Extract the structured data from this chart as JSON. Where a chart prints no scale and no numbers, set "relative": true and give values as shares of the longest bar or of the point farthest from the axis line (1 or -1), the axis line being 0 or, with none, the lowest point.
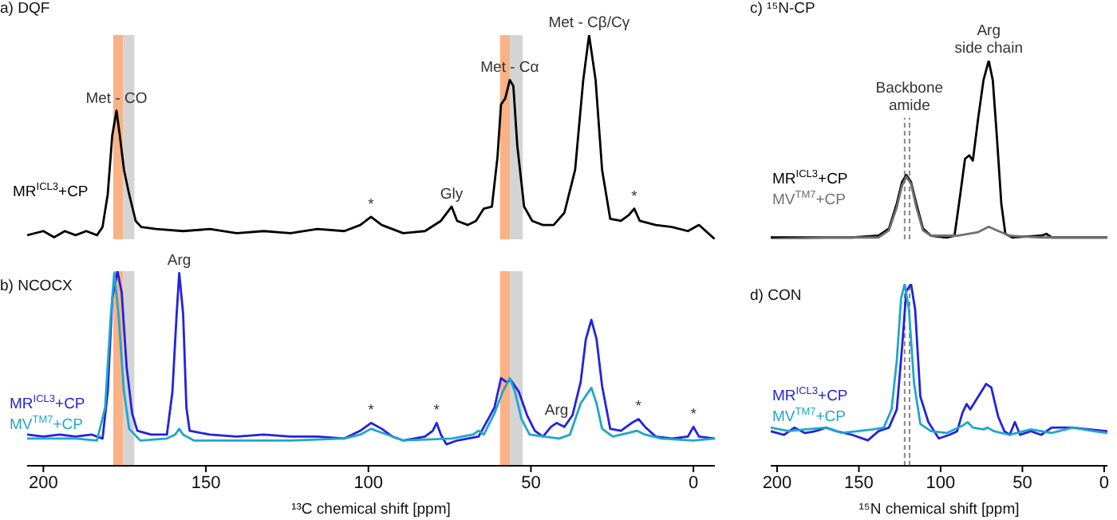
{
  "chart_data": [
    {
      "type": "line",
      "title": "a) DQF",
      "relative": true,
      "xticks": [
        200,
        150,
        100,
        50,
        0
      ],
      "tick_labels": false,
      "series": [
        {
          "name": "MR$^{ICL3}$+CP",
          "color": "#000000",
          "x": [
            205.0,
            200.0,
            196.7,
            193.4,
            190.1,
            186.8,
            183.5,
            181.8,
            180.2,
            178.8,
            177.5,
            176.5,
            175.2,
            173.6,
            171.6,
            169.9,
            165.3,
            157.0,
            148.8,
            140.5,
            132.2,
            124.0,
            115.7,
            107.4,
            102.5,
            99.2,
            95.9,
            89.3,
            82.6,
            77.7,
            74.4,
            72.7,
            69.4,
            66.9,
            64.5,
            62.0,
            60.3,
            59.2,
            57.9,
            56.5,
            55.4,
            54.2,
            52.1,
            49.6,
            46.3,
            43.0,
            39.7,
            36.4,
            33.9,
            32.1,
            30.1,
            28.1,
            25.6,
            22.3,
            19.8,
            18.2,
            16.5,
            11.6,
            6.6,
            1.7,
            -1.7,
            -6.6
          ],
          "values": [
            0.02,
            0.04,
            0.01,
            0.04,
            0.02,
            0.04,
            0.02,
            0.06,
            0.22,
            0.51,
            0.63,
            0.51,
            0.34,
            0.22,
            0.09,
            0.06,
            0.05,
            0.04,
            0.05,
            0.03,
            0.04,
            0.03,
            0.05,
            0.04,
            0.07,
            0.11,
            0.07,
            0.03,
            0.04,
            0.09,
            0.16,
            0.09,
            0.07,
            0.09,
            0.15,
            0.16,
            0.4,
            0.66,
            0.69,
            0.78,
            0.75,
            0.46,
            0.16,
            0.09,
            0.07,
            0.07,
            0.13,
            0.34,
            0.78,
            1.0,
            0.78,
            0.34,
            0.1,
            0.09,
            0.12,
            0.15,
            0.09,
            0.07,
            0.06,
            0.04,
            0.07,
            0.0
          ]
        }
      ],
      "bands": [
        {
          "axis": "x",
          "from": 175.5,
          "to": 178.5,
          "color": "#f8aa78"
        },
        {
          "axis": "x",
          "from": 172,
          "to": 175.5,
          "color": "#cfcfcf"
        },
        {
          "axis": "x",
          "from": 56.5,
          "to": 59.5,
          "color": "#f8aa78"
        },
        {
          "axis": "x",
          "from": 52.5,
          "to": 56.5,
          "color": "#cfcfcf"
        }
      ],
      "annotations": [
        {
          "text": "Met - CO",
          "x": 177.5,
          "y": 0.63
        },
        {
          "text": "Met - Cα",
          "x": 56.5,
          "y": 0.78
        },
        {
          "text": "Met - Cβ/Cγ",
          "x": 32.1,
          "y": 1.0
        },
        {
          "text": "Gly",
          "x": 74.4,
          "y": 0.16
        },
        {
          "text": "*",
          "x": 99.2,
          "y": 0.11
        },
        {
          "text": "*",
          "x": 18.2,
          "y": 0.15
        }
      ]
    },
    {
      "type": "line",
      "title": "b) NCOCX",
      "xlabel": "¹³C chemical shift [ppm]",
      "relative": true,
      "xlim": [
        205.0,
        -6.6
      ],
      "xticks": [
        200,
        150,
        100,
        50,
        0
      ],
      "series": [
        {
          "name": "MR$^{ICL3}$+CP",
          "color": "#2222e0",
          "x": [
            205.0,
            200.0,
            195.0,
            190.1,
            185.1,
            181.8,
            180.2,
            178.8,
            177.2,
            175.9,
            174.4,
            172.7,
            171.1,
            166.9,
            162.0,
            160.3,
            159.0,
            158.2,
            157.0,
            156.0,
            155.0,
            148.8,
            140.5,
            132.2,
            124.0,
            115.7,
            107.4,
            102.5,
            99.2,
            95.9,
            92.6,
            89.3,
            82.6,
            80.2,
            79.0,
            77.7,
            76.0,
            72.7,
            66.1,
            61.2,
            59.2,
            57.5,
            56.2,
            53.7,
            51.2,
            48.8,
            46.3,
            43.8,
            42.1,
            39.7,
            37.2,
            34.7,
            33.1,
            31.4,
            29.8,
            28.1,
            25.6,
            22.3,
            19.0,
            16.9,
            14.9,
            11.6,
            6.6,
            1.7,
            0.0,
            -1.7,
            -6.6
          ],
          "values": [
            0.16,
            0.15,
            0.16,
            0.15,
            0.16,
            0.14,
            0.38,
            0.86,
            1.0,
            0.89,
            0.51,
            0.27,
            0.18,
            0.16,
            0.16,
            0.38,
            0.78,
            0.99,
            0.78,
            0.3,
            0.18,
            0.16,
            0.15,
            0.16,
            0.15,
            0.15,
            0.14,
            0.18,
            0.22,
            0.19,
            0.15,
            0.13,
            0.15,
            0.18,
            0.22,
            0.16,
            0.11,
            0.13,
            0.15,
            0.3,
            0.45,
            0.43,
            0.44,
            0.38,
            0.26,
            0.18,
            0.15,
            0.2,
            0.22,
            0.2,
            0.26,
            0.43,
            0.65,
            0.75,
            0.65,
            0.41,
            0.19,
            0.18,
            0.22,
            0.24,
            0.2,
            0.15,
            0.14,
            0.15,
            0.2,
            0.15,
            0.14
          ]
        },
        {
          "name": "MV$^{TM7}$+CP",
          "color": "#1fa6cc",
          "x": [
            205.0,
            198.3,
            190.1,
            183.5,
            181.0,
            179.3,
            178.2,
            176.9,
            175.2,
            173.6,
            170.2,
            162.0,
            159.5,
            158.2,
            157.0,
            153.7,
            140.5,
            124.0,
            107.4,
            102.5,
            99.2,
            95.9,
            89.3,
            74.4,
            67.8,
            66.1,
            64.5,
            61.2,
            58.7,
            56.5,
            54.9,
            52.9,
            50.4,
            41.3,
            38.0,
            34.7,
            33.1,
            31.4,
            29.8,
            28.1,
            24.8,
            19.8,
            17.4,
            14.9,
            9.9,
            0.0,
            -6.6
          ],
          "values": [
            0.14,
            0.14,
            0.14,
            0.13,
            0.3,
            0.76,
            0.99,
            0.78,
            0.38,
            0.19,
            0.13,
            0.14,
            0.16,
            0.19,
            0.16,
            0.13,
            0.13,
            0.13,
            0.14,
            0.16,
            0.19,
            0.17,
            0.13,
            0.14,
            0.16,
            0.18,
            0.16,
            0.27,
            0.38,
            0.45,
            0.38,
            0.24,
            0.16,
            0.14,
            0.16,
            0.32,
            0.36,
            0.4,
            0.32,
            0.19,
            0.15,
            0.17,
            0.18,
            0.16,
            0.14,
            0.13,
            0.14
          ]
        }
      ],
      "bands": [
        {
          "axis": "x",
          "from": 175.5,
          "to": 178.5,
          "color": "#f8aa78"
        },
        {
          "axis": "x",
          "from": 172,
          "to": 175.5,
          "color": "#cfcfcf"
        },
        {
          "axis": "x",
          "from": 56.5,
          "to": 59.5,
          "color": "#f8aa78"
        },
        {
          "axis": "x",
          "from": 52.5,
          "to": 56.5,
          "color": "#cfcfcf"
        }
      ],
      "annotations": [
        {
          "text": "Arg",
          "x": 158.2,
          "y": 0.99
        },
        {
          "text": "Arg",
          "x": 42.1,
          "y": 0.22
        },
        {
          "text": "*",
          "x": 99.2,
          "y": 0.22
        },
        {
          "text": "*",
          "x": 79.0,
          "y": 0.22
        },
        {
          "text": "*",
          "x": 16.9,
          "y": 0.24
        },
        {
          "text": "*",
          "x": 0.0,
          "y": 0.2
        }
      ]
    },
    {
      "type": "line",
      "title": "c) ¹⁵N-CP",
      "relative": true,
      "xticks": [
        200,
        150,
        100,
        50,
        0
      ],
      "tick_labels": false,
      "series": [
        {
          "name": "MR$^{ICL3}$+CP",
          "color": "#000000",
          "x": [
            203.9,
            186.2,
            170.1,
            154.1,
            138.0,
            131.6,
            126.8,
            123.6,
            121.0,
            118.1,
            114.9,
            110.8,
            105.9,
            96.3,
            91.5,
            88.3,
            85.1,
            82.5,
            80.3,
            77.0,
            73.8,
            70.6,
            68.1,
            65.5,
            62.9,
            60.4,
            56.2,
            38.5,
            35.3,
            32.1,
            12.8,
            -2
          ],
          "values": [
            0.01,
            0.01,
            0.01,
            0.01,
            0.02,
            0.06,
            0.2,
            0.32,
            0.36,
            0.32,
            0.2,
            0.06,
            0.02,
            0.01,
            0.02,
            0.23,
            0.45,
            0.47,
            0.44,
            0.68,
            0.89,
            1.0,
            0.89,
            0.56,
            0.2,
            0.03,
            0.01,
            0.02,
            0.03,
            0.01,
            0.01,
            0.01
          ]
        },
        {
          "name": "MV$^{TM7}$+CP",
          "color": "#707070",
          "x": [
            203.9,
            170.1,
            138.0,
            131.6,
            126.8,
            123.6,
            121.0,
            118.1,
            114.9,
            110.8,
            105.9,
            89.9,
            77.0,
            70.6,
            65.8,
            57.8,
            38.5,
            -2
          ],
          "values": [
            0.0,
            0.01,
            0.01,
            0.05,
            0.18,
            0.3,
            0.35,
            0.31,
            0.18,
            0.05,
            0.02,
            0.02,
            0.04,
            0.07,
            0.05,
            0.02,
            0.01,
            0.01
          ]
        }
      ],
      "ref_lines": [
        {
          "axis": "x",
          "value": 122,
          "color": "#888888",
          "line_style": "dashed",
          "label": "Backbone\namide"
        },
        {
          "axis": "x",
          "value": 119,
          "color": "#888888",
          "line_style": "dashed"
        }
      ],
      "annotations": [
        {
          "text": "Arg\nside chain",
          "x": 70.6,
          "y": 1.0
        }
      ]
    },
    {
      "type": "line",
      "title": "d) CON",
      "xlabel": "¹⁵N chemical shift [ppm]",
      "relative": true,
      "xlim": [
        203.9,
        -2
      ],
      "xticks": [
        200,
        150,
        100,
        50,
        0
      ],
      "series": [
        {
          "name": "MR$^{ICL3}$+CP",
          "color": "#2222e0",
          "x": [
            203.9,
            195.8,
            189.4,
            183.0,
            176.6,
            170.1,
            163.7,
            154.1,
            144.5,
            138.0,
            131.6,
            126.8,
            123.6,
            121.0,
            118.1,
            115.6,
            112.4,
            107.5,
            101.1,
            94.7,
            89.9,
            86.7,
            84.1,
            81.9,
            77.0,
            72.2,
            69.0,
            64.8,
            61.0,
            57.8,
            54.6,
            51.4,
            44.9,
            38.5,
            32.1,
            19.3,
            9.6,
            -2
          ],
          "values": [
            0.19,
            0.17,
            0.21,
            0.18,
            0.19,
            0.21,
            0.19,
            0.17,
            0.14,
            0.19,
            0.21,
            0.31,
            0.65,
            0.96,
            1.0,
            0.86,
            0.38,
            0.24,
            0.15,
            0.17,
            0.19,
            0.29,
            0.34,
            0.31,
            0.38,
            0.45,
            0.43,
            0.27,
            0.19,
            0.17,
            0.24,
            0.17,
            0.19,
            0.17,
            0.21,
            0.21,
            0.2,
            0.19
          ]
        },
        {
          "name": "MV$^{TM7}$+CP",
          "color": "#1fa6cc",
          "x": [
            203.9,
            192.6,
            183.0,
            170.1,
            160.5,
            150.9,
            141.3,
            134.8,
            130.0,
            126.8,
            124.2,
            122.0,
            119.4,
            116.2,
            112.4,
            105.9,
            96.3,
            86.7,
            83.5,
            80.3,
            73.8,
            71.3,
            67.4,
            57.8,
            44.9,
            32.1,
            19.3,
            6.4,
            -2
          ],
          "values": [
            0.21,
            0.19,
            0.2,
            0.21,
            0.18,
            0.19,
            0.2,
            0.21,
            0.31,
            0.58,
            0.92,
            1.0,
            0.86,
            0.45,
            0.23,
            0.19,
            0.18,
            0.22,
            0.24,
            0.21,
            0.2,
            0.21,
            0.19,
            0.17,
            0.2,
            0.18,
            0.21,
            0.19,
            0.18
          ]
        }
      ],
      "ref_lines": [
        {
          "axis": "x",
          "value": 122,
          "color": "#888888",
          "line_style": "dashed"
        },
        {
          "axis": "x",
          "value": 119,
          "color": "#888888",
          "line_style": "dashed"
        }
      ]
    }
  ]
}
